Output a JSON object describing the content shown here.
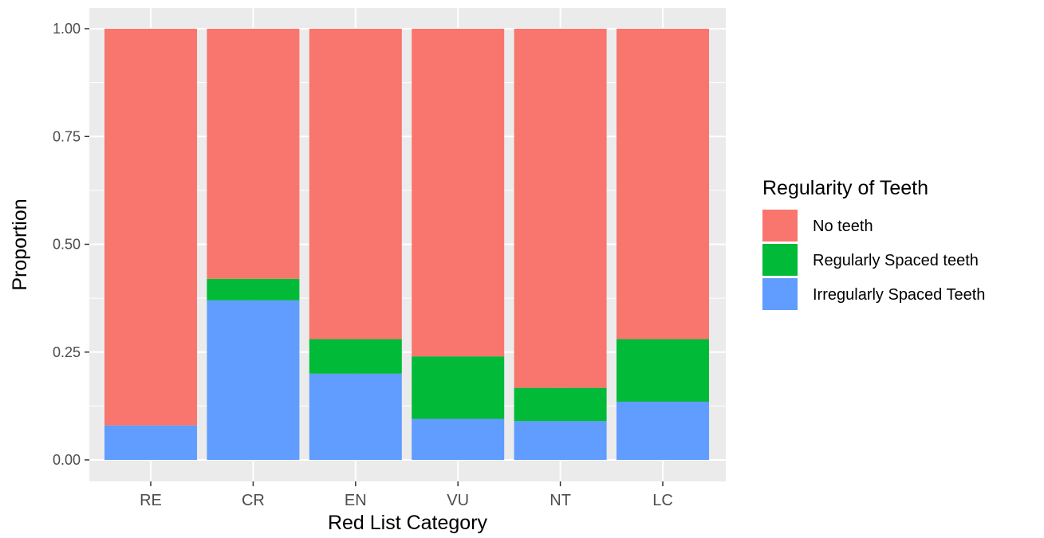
{
  "chart_data": {
    "type": "bar",
    "stacked": true,
    "xlabel": "Red List Category",
    "ylabel": "Proportion",
    "categories": [
      "RE",
      "CR",
      "EN",
      "VU",
      "NT",
      "LC"
    ],
    "ylim": [
      0,
      1
    ],
    "yticks": [
      "0.00",
      "0.25",
      "0.50",
      "0.75",
      "1.00"
    ],
    "ytick_values": [
      0,
      0.25,
      0.5,
      0.75,
      1
    ],
    "grid": true,
    "legend": {
      "title": "Regularity of Teeth",
      "position": "right"
    },
    "series": [
      {
        "name": "Irregularly Spaced Teeth",
        "color": "#619CFF",
        "values": [
          0.08,
          0.37,
          0.2,
          0.095,
          0.09,
          0.135
        ]
      },
      {
        "name": "Regularly Spaced teeth",
        "color": "#00BA38",
        "values": [
          0.0,
          0.05,
          0.08,
          0.145,
          0.077,
          0.145
        ]
      },
      {
        "name": "No teeth",
        "color": "#F8766D",
        "values": [
          0.92,
          0.58,
          0.72,
          0.76,
          0.833,
          0.72
        ]
      }
    ],
    "legend_order": [
      "No teeth",
      "Regularly Spaced teeth",
      "Irregularly Spaced Teeth"
    ]
  }
}
